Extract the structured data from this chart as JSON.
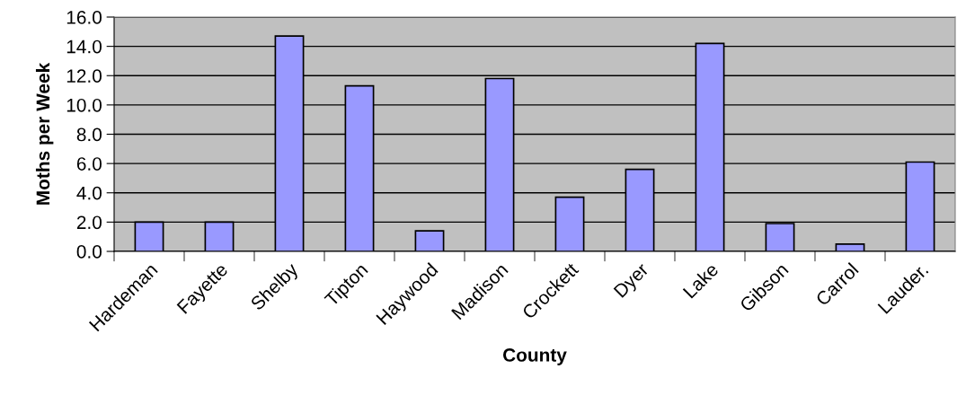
{
  "chart_data": {
    "type": "bar",
    "xlabel": "County",
    "ylabel": "Moths per Week",
    "categories": [
      "Hardeman",
      "Fayette",
      "Shelby",
      "Tipton",
      "Haywood",
      "Madison",
      "Crockett",
      "Dyer",
      "Lake",
      "Gibson",
      "Carrol",
      "Lauder."
    ],
    "values": [
      2.0,
      2.0,
      14.7,
      11.3,
      1.4,
      11.8,
      3.7,
      5.6,
      14.2,
      1.9,
      0.5,
      6.1
    ],
    "color": "#9999ff",
    "ylim": [
      0,
      16
    ],
    "yticks": [
      {
        "value": 0,
        "label": "0.0"
      },
      {
        "value": 2,
        "label": "2.0"
      },
      {
        "value": 4,
        "label": "4.0"
      },
      {
        "value": 6,
        "label": "6.0"
      },
      {
        "value": 8,
        "label": "8.0"
      },
      {
        "value": 10,
        "label": "10.0"
      },
      {
        "value": 12,
        "label": "12.0"
      },
      {
        "value": 14,
        "label": "14.0"
      },
      {
        "value": 16,
        "label": "16.0"
      }
    ],
    "grid": "y",
    "legend": false
  }
}
